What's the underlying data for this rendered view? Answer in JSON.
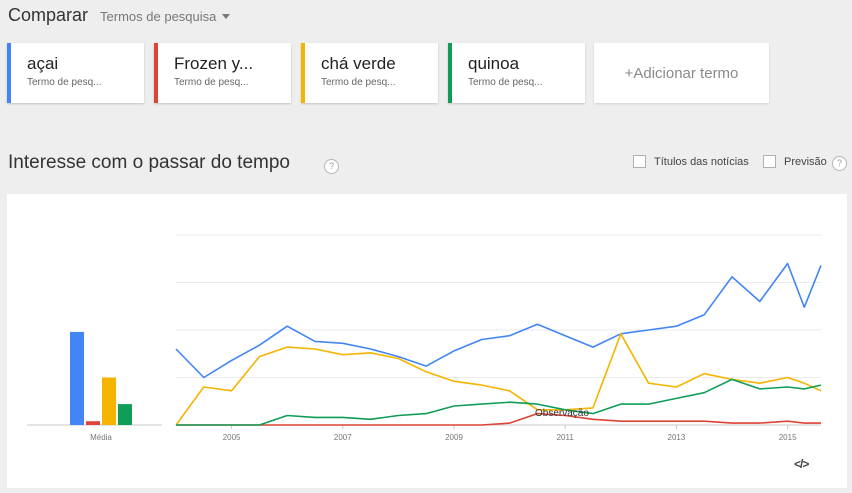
{
  "header": {
    "title": "Comparar",
    "term_select_label": "Termos de pesquisa"
  },
  "terms": [
    {
      "label": "açai",
      "sub": "Termo de pesq...",
      "color": "#4285f4"
    },
    {
      "label": "Frozen y...",
      "sub": "Termo de pesq...",
      "color": "#db4437"
    },
    {
      "label": "chá verde",
      "sub": "Termo de pesq...",
      "color": "#f4b400"
    },
    {
      "label": "quinoa",
      "sub": "Termo de pesq...",
      "color": "#0f9d58"
    }
  ],
  "add_term_label": "+Adicionar termo",
  "section": {
    "title": "Interesse com o passar do tempo",
    "help_glyph": "?",
    "news_headlines_label": "Títulos das notícias",
    "forecast_label": "Previsão"
  },
  "embed_icon": "code-embed-icon",
  "chart_data": {
    "type": "line",
    "title": "",
    "xlabel": "",
    "ylabel": "",
    "ylim": [
      0,
      100
    ],
    "grid": true,
    "average_label": "Média",
    "averages": [
      {
        "name": "açai",
        "value": 49
      },
      {
        "name": "Frozen y...",
        "value": 2
      },
      {
        "name": "chá verde",
        "value": 25
      },
      {
        "name": "quinoa",
        "value": 11
      }
    ],
    "x_ticks": [
      "2005",
      "2007",
      "2009",
      "2011",
      "2013",
      "2015"
    ],
    "annotation": "Observação",
    "x": [
      2004.0,
      2004.5,
      2005.0,
      2005.5,
      2006.0,
      2006.5,
      2007.0,
      2007.5,
      2008.0,
      2008.5,
      2009.0,
      2009.5,
      2010.0,
      2010.5,
      2011.0,
      2011.5,
      2012.0,
      2012.5,
      2013.0,
      2013.5,
      2014.0,
      2014.5,
      2015.0,
      2015.3,
      2015.6
    ],
    "series": [
      {
        "name": "açai",
        "color": "#4285f4",
        "values": [
          40,
          25,
          34,
          42,
          52,
          44,
          43,
          40,
          36,
          31,
          39,
          45,
          47,
          53,
          47,
          41,
          48,
          50,
          52,
          58,
          78,
          65,
          85,
          62,
          84
        ]
      },
      {
        "name": "Frozen y...",
        "color": "#db4437",
        "values": [
          0,
          0,
          0,
          0,
          0,
          0,
          0,
          0,
          0,
          0,
          0,
          0,
          1,
          6,
          5,
          3,
          2,
          2,
          2,
          2,
          1,
          1,
          2,
          1,
          1
        ]
      },
      {
        "name": "chá verde",
        "color": "#f4b400",
        "values": [
          0,
          20,
          18,
          36,
          41,
          40,
          37,
          38,
          35,
          28,
          23,
          21,
          18,
          8,
          8,
          9,
          48,
          22,
          20,
          27,
          24,
          22,
          25,
          22,
          18
        ]
      },
      {
        "name": "quinoa",
        "color": "#0f9d58",
        "values": [
          0,
          0,
          0,
          0,
          5,
          4,
          4,
          3,
          5,
          6,
          10,
          11,
          12,
          11,
          8,
          6,
          11,
          11,
          14,
          17,
          24,
          19,
          20,
          19,
          21
        ]
      }
    ]
  }
}
